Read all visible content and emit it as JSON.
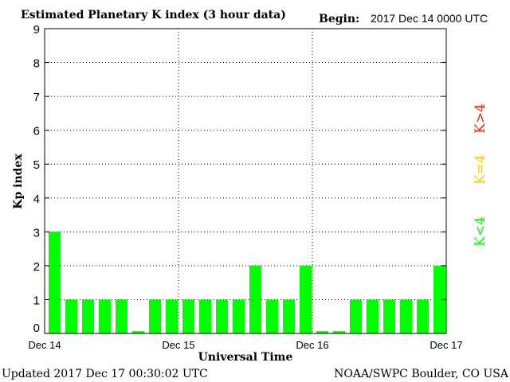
{
  "chart_data": {
    "type": "bar",
    "title": "Estimated Planetary K index (3 hour data)",
    "begin_label": "Begin:",
    "begin_value": "2017 Dec 14 0000 UTC",
    "xlabel": "Universal Time",
    "ylabel": "Kp index",
    "ylim": [
      0,
      9
    ],
    "yticks": [
      "0",
      "1",
      "2",
      "3",
      "4",
      "5",
      "6",
      "7",
      "8",
      "9"
    ],
    "xticks": [
      "Dec 14",
      "Dec 15",
      "Dec 16",
      "Dec 17"
    ],
    "grid": true,
    "values": [
      3,
      1,
      1,
      1,
      1,
      0.067,
      1,
      1,
      1,
      1,
      1,
      1,
      2,
      1,
      1,
      2,
      0.067,
      0.067,
      1,
      1,
      1,
      1,
      1,
      2
    ],
    "bar_color": "#00ff00",
    "legend": [
      {
        "label": "K<4",
        "color": "#00ff00"
      },
      {
        "label": "K=4",
        "color": "#ffcc00"
      },
      {
        "label": "K>4",
        "color": "#ff2200"
      }
    ],
    "updated_text": "Updated 2017 Dec 17 00:30:02 UTC",
    "credit_text": "NOAA/SWPC Boulder, CO USA"
  }
}
